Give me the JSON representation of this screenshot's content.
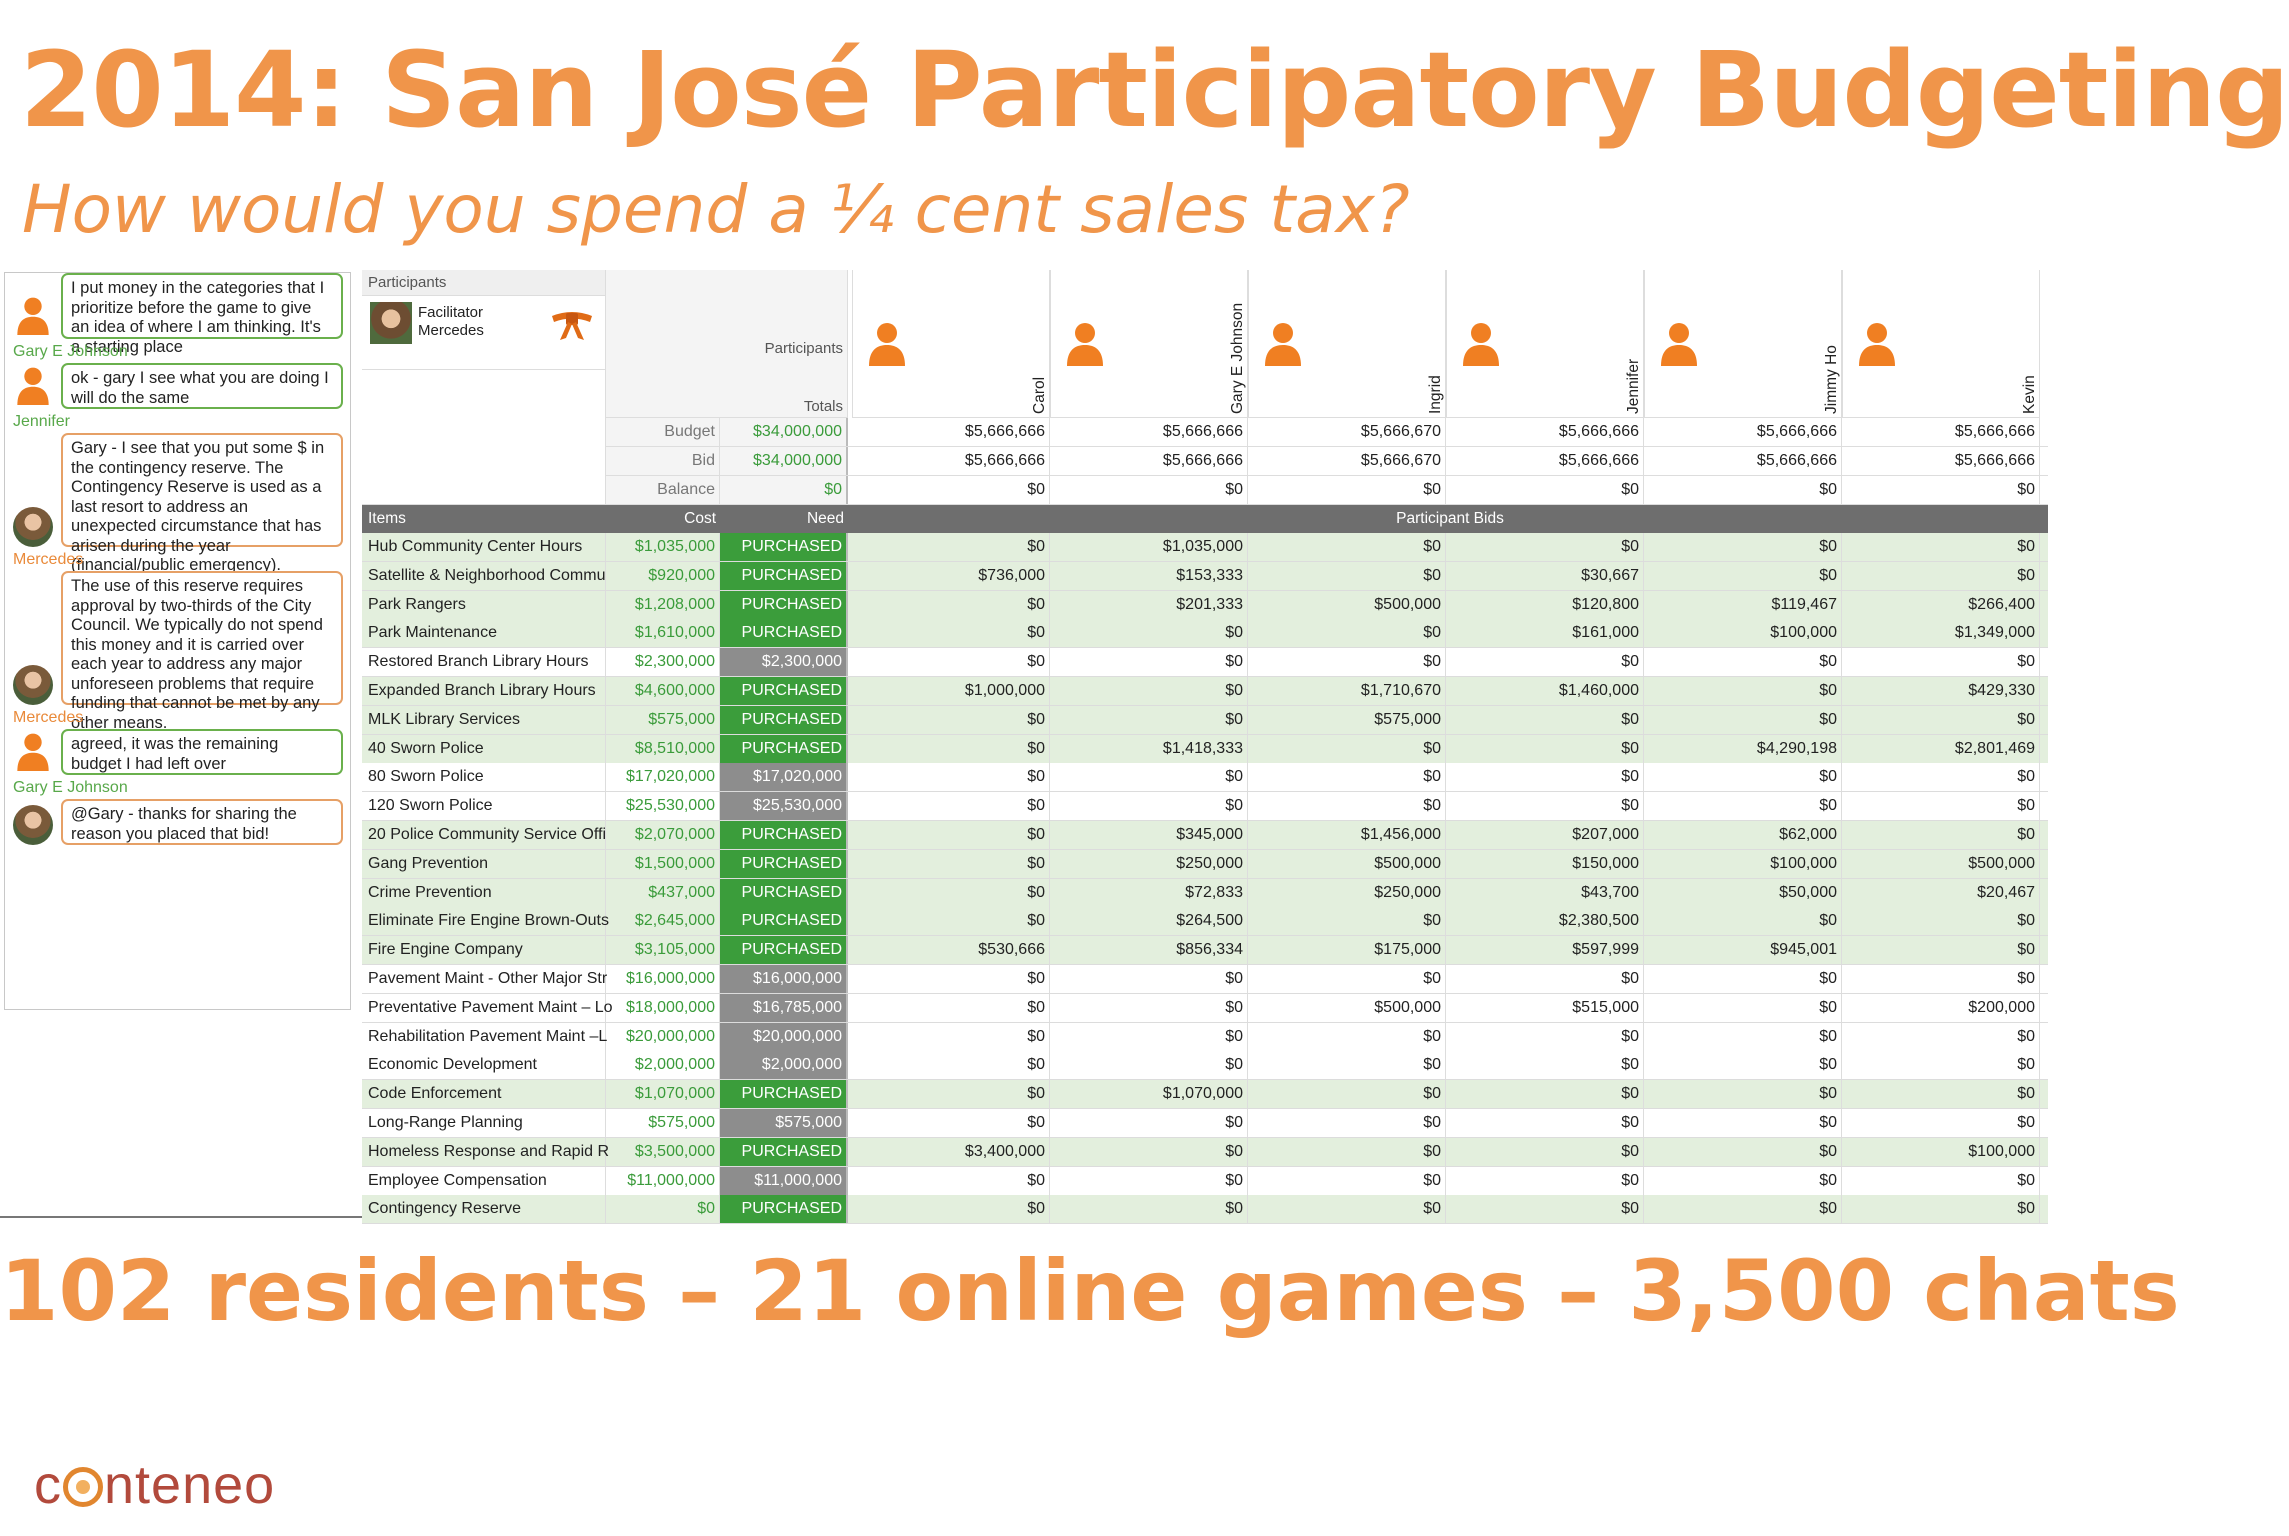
{
  "slide": {
    "title": "2014: San José Participatory Budgeting",
    "subtitle": "How would you spend a ¼ cent sales tax?",
    "stats": "102 residents – 21 online games – 3,500 chats",
    "logo_text_before": "c",
    "logo_text_after": "nteneo"
  },
  "chat": {
    "messages": [
      {
        "author": "Gary E Johnson",
        "text": "I put money in the categories that I prioritize before the game to give an idea of where I am thinking. It's a starting place",
        "avatar": "person-icon",
        "style": "green"
      },
      {
        "author": "Jennifer",
        "text": "ok - gary I see what you are doing I will do the same",
        "avatar": "person-icon",
        "style": "green"
      },
      {
        "author": "Mercedes",
        "text": "Gary - I see that you put some $ in the contingency reserve. The Contingency Reserve is used as a last resort to address an unexpected circumstance that has arisen during the year (financial/public emergency).",
        "avatar": "photo",
        "style": "orange"
      },
      {
        "author": "Mercedes",
        "text": "The use of this reserve requires approval by two-thirds of the City Council. We typically do not spend this money and it is carried over each year to address any major unforeseen problems that require funding that cannot be met by any other means.",
        "avatar": "photo",
        "style": "orange"
      },
      {
        "author": "Gary E Johnson",
        "text": "agreed, it was the remaining budget I had left over",
        "avatar": "person-icon",
        "style": "green"
      },
      {
        "author": "",
        "text": "@Gary - thanks for sharing the reason you placed that bid!",
        "avatar": "photo",
        "style": "orange"
      }
    ]
  },
  "grid": {
    "participants_header": "Participants",
    "facilitator_label": "Facilitator",
    "facilitator_name": "Mercedes",
    "participants_col_label": "Participants",
    "totals_label": "Totals",
    "summary_labels": [
      "Budget",
      "Bid",
      "Balance"
    ],
    "summary_totals": [
      "$34,000,000",
      "$34,000,000",
      "$0"
    ],
    "participants": [
      {
        "name": "Carol",
        "budget": "$5,666,666",
        "bid": "$5,666,666",
        "balance": "$0"
      },
      {
        "name": "Gary E Johnson",
        "budget": "$5,666,666",
        "bid": "$5,666,666",
        "balance": "$0"
      },
      {
        "name": "Ingrid",
        "budget": "$5,666,670",
        "bid": "$5,666,670",
        "balance": "$0"
      },
      {
        "name": "Jennifer",
        "budget": "$5,666,666",
        "bid": "$5,666,666",
        "balance": "$0"
      },
      {
        "name": "Jimmy Ho",
        "budget": "$5,666,666",
        "bid": "$5,666,666",
        "balance": "$0"
      },
      {
        "name": "Kevin",
        "budget": "$5,666,666",
        "bid": "$5,666,666",
        "balance": "$0"
      }
    ],
    "items_header": "Items",
    "cost_header": "Cost",
    "need_header": "Need",
    "bids_header": "Participant Bids",
    "items": [
      {
        "name": "Hub Community Center Hours",
        "cost": "$1,035,000",
        "need": "PURCHASED",
        "bids": [
          "$0",
          "$1,035,000",
          "$0",
          "$0",
          "$0",
          "$0"
        ]
      },
      {
        "name": "Satellite & Neighborhood Commu",
        "cost": "$920,000",
        "need": "PURCHASED",
        "bids": [
          "$736,000",
          "$153,333",
          "$0",
          "$30,667",
          "$0",
          "$0"
        ]
      },
      {
        "name": "Park Rangers",
        "cost": "$1,208,000",
        "need": "PURCHASED",
        "bids": [
          "$0",
          "$201,333",
          "$500,000",
          "$120,800",
          "$119,467",
          "$266,400"
        ]
      },
      {
        "name": "Park Maintenance",
        "cost": "$1,610,000",
        "need": "PURCHASED",
        "bids": [
          "$0",
          "$0",
          "$0",
          "$161,000",
          "$100,000",
          "$1,349,000"
        ]
      },
      {
        "name": "Restored Branch Library Hours",
        "cost": "$2,300,000",
        "need": "$2,300,000",
        "bids": [
          "$0",
          "$0",
          "$0",
          "$0",
          "$0",
          "$0"
        ]
      },
      {
        "name": "Expanded Branch Library Hours",
        "cost": "$4,600,000",
        "need": "PURCHASED",
        "bids": [
          "$1,000,000",
          "$0",
          "$1,710,670",
          "$1,460,000",
          "$0",
          "$429,330"
        ]
      },
      {
        "name": "MLK Library Services",
        "cost": "$575,000",
        "need": "PURCHASED",
        "bids": [
          "$0",
          "$0",
          "$575,000",
          "$0",
          "$0",
          "$0"
        ]
      },
      {
        "name": "40 Sworn Police",
        "cost": "$8,510,000",
        "need": "PURCHASED",
        "bids": [
          "$0",
          "$1,418,333",
          "$0",
          "$0",
          "$4,290,198",
          "$2,801,469"
        ]
      },
      {
        "name": "80 Sworn Police",
        "cost": "$17,020,000",
        "need": "$17,020,000",
        "bids": [
          "$0",
          "$0",
          "$0",
          "$0",
          "$0",
          "$0"
        ]
      },
      {
        "name": "120 Sworn Police",
        "cost": "$25,530,000",
        "need": "$25,530,000",
        "bids": [
          "$0",
          "$0",
          "$0",
          "$0",
          "$0",
          "$0"
        ]
      },
      {
        "name": "20 Police Community Service Offi",
        "cost": "$2,070,000",
        "need": "PURCHASED",
        "bids": [
          "$0",
          "$345,000",
          "$1,456,000",
          "$207,000",
          "$62,000",
          "$0"
        ]
      },
      {
        "name": "Gang Prevention",
        "cost": "$1,500,000",
        "need": "PURCHASED",
        "bids": [
          "$0",
          "$250,000",
          "$500,000",
          "$150,000",
          "$100,000",
          "$500,000"
        ]
      },
      {
        "name": "Crime Prevention",
        "cost": "$437,000",
        "need": "PURCHASED",
        "bids": [
          "$0",
          "$72,833",
          "$250,000",
          "$43,700",
          "$50,000",
          "$20,467"
        ]
      },
      {
        "name": "Eliminate Fire Engine Brown-Outs",
        "cost": "$2,645,000",
        "need": "PURCHASED",
        "bids": [
          "$0",
          "$264,500",
          "$0",
          "$2,380,500",
          "$0",
          "$0"
        ]
      },
      {
        "name": "Fire Engine Company",
        "cost": "$3,105,000",
        "need": "PURCHASED",
        "bids": [
          "$530,666",
          "$856,334",
          "$175,000",
          "$597,999",
          "$945,001",
          "$0"
        ]
      },
      {
        "name": "Pavement Maint - Other Major Str",
        "cost": "$16,000,000",
        "need": "$16,000,000",
        "bids": [
          "$0",
          "$0",
          "$0",
          "$0",
          "$0",
          "$0"
        ]
      },
      {
        "name": "Preventative Pavement Maint – Lo",
        "cost": "$18,000,000",
        "need": "$16,785,000",
        "bids": [
          "$0",
          "$0",
          "$500,000",
          "$515,000",
          "$0",
          "$200,000"
        ]
      },
      {
        "name": "Rehabilitation Pavement Maint –L",
        "cost": "$20,000,000",
        "need": "$20,000,000",
        "bids": [
          "$0",
          "$0",
          "$0",
          "$0",
          "$0",
          "$0"
        ]
      },
      {
        "name": "Economic Development",
        "cost": "$2,000,000",
        "need": "$2,000,000",
        "bids": [
          "$0",
          "$0",
          "$0",
          "$0",
          "$0",
          "$0"
        ]
      },
      {
        "name": "Code Enforcement",
        "cost": "$1,070,000",
        "need": "PURCHASED",
        "bids": [
          "$0",
          "$1,070,000",
          "$0",
          "$0",
          "$0",
          "$0"
        ]
      },
      {
        "name": "Long-Range Planning",
        "cost": "$575,000",
        "need": "$575,000",
        "bids": [
          "$0",
          "$0",
          "$0",
          "$0",
          "$0",
          "$0"
        ]
      },
      {
        "name": "Homeless Response and Rapid R",
        "cost": "$3,500,000",
        "need": "PURCHASED",
        "bids": [
          "$3,400,000",
          "$0",
          "$0",
          "$0",
          "$0",
          "$100,000"
        ]
      },
      {
        "name": "Employee Compensation",
        "cost": "$11,000,000",
        "need": "$11,000,000",
        "bids": [
          "$0",
          "$0",
          "$0",
          "$0",
          "$0",
          "$0"
        ]
      },
      {
        "name": "Contingency Reserve",
        "cost": "$0",
        "need": "PURCHASED",
        "bids": [
          "$0",
          "$0",
          "$0",
          "$0",
          "$0",
          "$0"
        ]
      }
    ]
  },
  "colors": {
    "accent_orange": "#f0954a",
    "purchased_green": "#3b9d3b",
    "unfunded_gray": "#8d8d8d",
    "row_green": "#e3efdd"
  }
}
